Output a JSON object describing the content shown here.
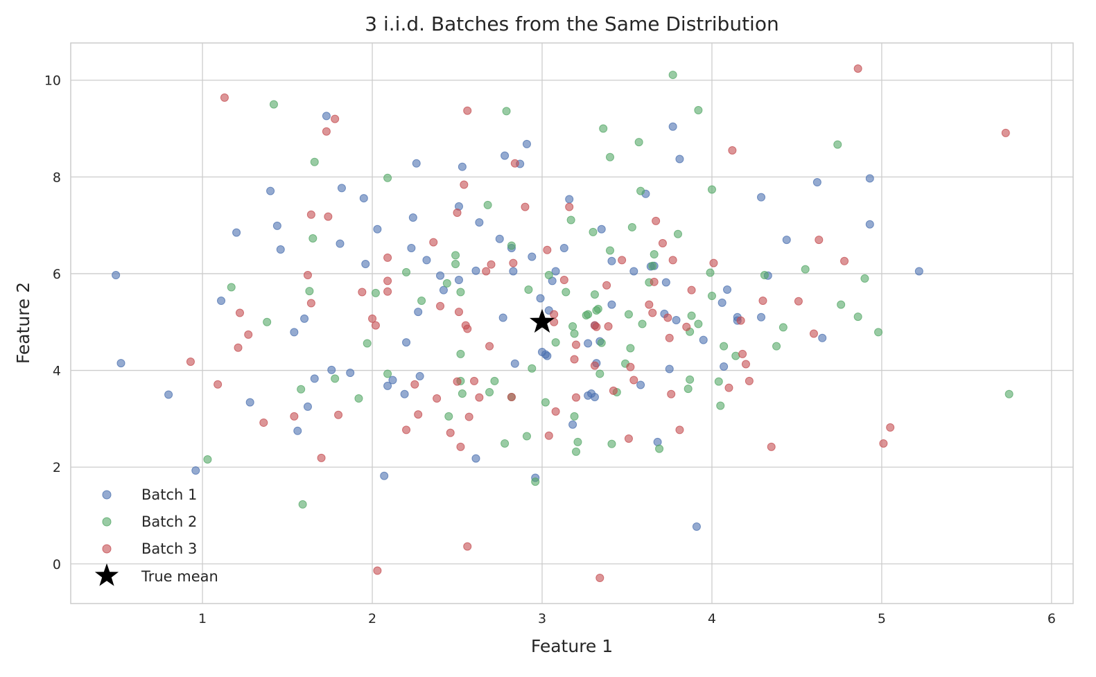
{
  "chart_data": {
    "type": "scatter",
    "title": "3 i.i.d. Batches from the Same Distribution",
    "xlabel": "Feature 1",
    "ylabel": "Feature 2",
    "xlim": [
      0.224,
      6.127
    ],
    "ylim": [
      -0.82,
      10.77
    ],
    "xticks": [
      1,
      2,
      3,
      4,
      5,
      6
    ],
    "yticks": [
      0,
      2,
      4,
      6,
      8,
      10
    ],
    "grid": true,
    "legend_position": "bottom-left",
    "series": [
      {
        "name": "Batch 1",
        "color": "#4C72B0",
        "alpha": 0.6,
        "points": [
          [
            0.49,
            5.97
          ],
          [
            0.52,
            4.15
          ],
          [
            0.8,
            3.5
          ],
          [
            0.96,
            1.93
          ],
          [
            1.11,
            5.44
          ],
          [
            1.2,
            6.85
          ],
          [
            1.28,
            3.34
          ],
          [
            1.4,
            7.71
          ],
          [
            1.44,
            6.99
          ],
          [
            1.46,
            6.5
          ],
          [
            1.54,
            4.79
          ],
          [
            1.56,
            2.75
          ],
          [
            1.6,
            5.07
          ],
          [
            1.62,
            3.25
          ],
          [
            1.66,
            3.83
          ],
          [
            1.73,
            9.26
          ],
          [
            1.76,
            4.01
          ],
          [
            1.81,
            6.62
          ],
          [
            1.82,
            7.77
          ],
          [
            1.87,
            3.95
          ],
          [
            1.95,
            7.56
          ],
          [
            1.96,
            6.2
          ],
          [
            2.03,
            6.92
          ],
          [
            2.07,
            1.82
          ],
          [
            2.09,
            3.68
          ],
          [
            2.12,
            3.8
          ],
          [
            2.19,
            3.51
          ],
          [
            2.2,
            4.58
          ],
          [
            2.24,
            7.16
          ],
          [
            2.23,
            6.53
          ],
          [
            2.26,
            8.28
          ],
          [
            2.27,
            5.21
          ],
          [
            2.28,
            3.88
          ],
          [
            2.32,
            6.28
          ],
          [
            2.4,
            5.96
          ],
          [
            2.42,
            5.66
          ],
          [
            2.51,
            5.87
          ],
          [
            2.51,
            7.39
          ],
          [
            2.53,
            8.21
          ],
          [
            2.61,
            6.06
          ],
          [
            2.61,
            2.18
          ],
          [
            2.63,
            7.06
          ],
          [
            2.75,
            6.72
          ],
          [
            2.77,
            5.09
          ],
          [
            2.78,
            8.44
          ],
          [
            2.82,
            6.53
          ],
          [
            2.83,
            6.05
          ],
          [
            2.84,
            4.14
          ],
          [
            2.87,
            8.27
          ],
          [
            2.91,
            8.68
          ],
          [
            2.94,
            6.35
          ],
          [
            2.96,
            1.78
          ],
          [
            2.99,
            5.49
          ],
          [
            3.0,
            4.38
          ],
          [
            3.02,
            4.33
          ],
          [
            3.03,
            4.3
          ],
          [
            3.04,
            5.24
          ],
          [
            3.06,
            5.85
          ],
          [
            3.08,
            6.05
          ],
          [
            3.13,
            6.53
          ],
          [
            3.16,
            7.54
          ],
          [
            3.18,
            2.88
          ],
          [
            3.27,
            3.48
          ],
          [
            3.29,
            3.52
          ],
          [
            3.27,
            4.56
          ],
          [
            3.31,
            3.45
          ],
          [
            3.31,
            4.93
          ],
          [
            3.32,
            4.15
          ],
          [
            3.34,
            4.6
          ],
          [
            3.35,
            6.92
          ],
          [
            3.41,
            6.26
          ],
          [
            3.41,
            5.36
          ],
          [
            3.54,
            6.05
          ],
          [
            3.58,
            3.7
          ],
          [
            3.61,
            7.65
          ],
          [
            3.64,
            6.15
          ],
          [
            3.66,
            6.16
          ],
          [
            3.68,
            2.52
          ],
          [
            3.72,
            5.17
          ],
          [
            3.73,
            5.82
          ],
          [
            3.75,
            4.03
          ],
          [
            3.77,
            9.04
          ],
          [
            3.79,
            5.04
          ],
          [
            3.81,
            8.37
          ],
          [
            3.91,
            0.77
          ],
          [
            3.95,
            4.63
          ],
          [
            4.06,
            5.4
          ],
          [
            4.07,
            4.08
          ],
          [
            4.09,
            5.67
          ],
          [
            4.15,
            5.1
          ],
          [
            4.15,
            5.03
          ],
          [
            4.29,
            7.58
          ],
          [
            4.29,
            5.1
          ],
          [
            4.33,
            5.96
          ],
          [
            4.44,
            6.7
          ],
          [
            4.62,
            7.89
          ],
          [
            4.65,
            4.67
          ],
          [
            4.93,
            7.97
          ],
          [
            4.93,
            7.02
          ],
          [
            5.22,
            6.05
          ]
        ]
      },
      {
        "name": "Batch 2",
        "color": "#55A868",
        "alpha": 0.6,
        "points": [
          [
            1.03,
            2.16
          ],
          [
            1.17,
            5.72
          ],
          [
            1.38,
            5.0
          ],
          [
            1.42,
            9.5
          ],
          [
            1.59,
            1.23
          ],
          [
            1.58,
            3.61
          ],
          [
            1.63,
            5.64
          ],
          [
            1.66,
            8.31
          ],
          [
            1.65,
            6.73
          ],
          [
            1.78,
            3.83
          ],
          [
            1.92,
            3.42
          ],
          [
            1.97,
            4.56
          ],
          [
            2.02,
            5.6
          ],
          [
            2.09,
            7.98
          ],
          [
            2.09,
            3.93
          ],
          [
            2.2,
            6.03
          ],
          [
            2.29,
            5.44
          ],
          [
            2.44,
            5.8
          ],
          [
            2.45,
            3.05
          ],
          [
            2.49,
            6.38
          ],
          [
            2.49,
            6.2
          ],
          [
            2.52,
            5.62
          ],
          [
            2.52,
            4.34
          ],
          [
            2.52,
            3.78
          ],
          [
            2.53,
            3.52
          ],
          [
            2.68,
            7.42
          ],
          [
            2.69,
            3.55
          ],
          [
            2.72,
            3.78
          ],
          [
            2.79,
            9.36
          ],
          [
            2.78,
            2.49
          ],
          [
            2.82,
            3.45
          ],
          [
            2.82,
            6.58
          ],
          [
            2.91,
            2.64
          ],
          [
            2.92,
            5.67
          ],
          [
            2.94,
            4.04
          ],
          [
            2.96,
            1.7
          ],
          [
            3.02,
            3.34
          ],
          [
            3.04,
            5.97
          ],
          [
            3.08,
            4.58
          ],
          [
            3.14,
            5.62
          ],
          [
            3.17,
            7.11
          ],
          [
            3.18,
            4.91
          ],
          [
            3.19,
            4.76
          ],
          [
            3.19,
            3.05
          ],
          [
            3.21,
            2.52
          ],
          [
            3.2,
            2.32
          ],
          [
            3.26,
            5.14
          ],
          [
            3.27,
            5.16
          ],
          [
            3.3,
            6.86
          ],
          [
            3.31,
            5.57
          ],
          [
            3.32,
            5.24
          ],
          [
            3.33,
            5.27
          ],
          [
            3.34,
            3.93
          ],
          [
            3.35,
            4.57
          ],
          [
            3.36,
            9.0
          ],
          [
            3.4,
            6.48
          ],
          [
            3.4,
            8.41
          ],
          [
            3.41,
            2.48
          ],
          [
            3.44,
            3.55
          ],
          [
            3.49,
            4.14
          ],
          [
            3.51,
            5.16
          ],
          [
            3.53,
            6.96
          ],
          [
            3.52,
            4.46
          ],
          [
            3.57,
            8.72
          ],
          [
            3.58,
            7.71
          ],
          [
            3.59,
            4.96
          ],
          [
            3.63,
            5.82
          ],
          [
            3.65,
            6.16
          ],
          [
            3.66,
            6.4
          ],
          [
            3.69,
            2.38
          ],
          [
            3.77,
            10.11
          ],
          [
            3.8,
            6.82
          ],
          [
            3.86,
            3.62
          ],
          [
            3.87,
            3.81
          ],
          [
            3.87,
            4.8
          ],
          [
            3.88,
            5.13
          ],
          [
            3.92,
            9.38
          ],
          [
            3.92,
            4.96
          ],
          [
            3.99,
            6.02
          ],
          [
            4.0,
            5.54
          ],
          [
            4.0,
            7.74
          ],
          [
            4.04,
            3.77
          ],
          [
            4.05,
            3.27
          ],
          [
            4.07,
            4.5
          ],
          [
            4.14,
            4.3
          ],
          [
            4.31,
            5.97
          ],
          [
            4.38,
            4.5
          ],
          [
            4.42,
            4.89
          ],
          [
            4.55,
            6.09
          ],
          [
            4.74,
            8.67
          ],
          [
            4.76,
            5.36
          ],
          [
            4.86,
            5.11
          ],
          [
            4.9,
            5.9
          ],
          [
            4.98,
            4.79
          ],
          [
            5.75,
            3.51
          ]
        ]
      },
      {
        "name": "Batch 3",
        "color": "#C44E52",
        "alpha": 0.6,
        "points": [
          [
            0.93,
            4.18
          ],
          [
            1.09,
            3.71
          ],
          [
            1.13,
            9.64
          ],
          [
            1.22,
            5.19
          ],
          [
            1.21,
            4.47
          ],
          [
            1.27,
            4.74
          ],
          [
            1.36,
            2.92
          ],
          [
            1.54,
            3.05
          ],
          [
            1.62,
            5.97
          ],
          [
            1.64,
            5.39
          ],
          [
            1.64,
            7.22
          ],
          [
            1.7,
            2.19
          ],
          [
            1.73,
            8.94
          ],
          [
            1.74,
            7.18
          ],
          [
            1.78,
            9.2
          ],
          [
            1.8,
            3.08
          ],
          [
            1.94,
            5.62
          ],
          [
            2.03,
            -0.14
          ],
          [
            2.02,
            4.93
          ],
          [
            2.0,
            5.07
          ],
          [
            2.09,
            5.85
          ],
          [
            2.09,
            5.63
          ],
          [
            2.09,
            6.33
          ],
          [
            2.2,
            2.77
          ],
          [
            2.25,
            3.71
          ],
          [
            2.27,
            3.09
          ],
          [
            2.36,
            6.65
          ],
          [
            2.4,
            5.33
          ],
          [
            2.38,
            3.42
          ],
          [
            2.46,
            2.71
          ],
          [
            2.5,
            7.26
          ],
          [
            2.5,
            3.77
          ],
          [
            2.51,
            5.21
          ],
          [
            2.52,
            2.42
          ],
          [
            2.54,
            7.84
          ],
          [
            2.55,
            4.93
          ],
          [
            2.56,
            4.86
          ],
          [
            2.56,
            9.37
          ],
          [
            2.56,
            0.36
          ],
          [
            2.57,
            3.04
          ],
          [
            2.6,
            3.78
          ],
          [
            2.63,
            3.44
          ],
          [
            2.67,
            6.05
          ],
          [
            2.7,
            6.19
          ],
          [
            2.69,
            4.5
          ],
          [
            2.82,
            3.45
          ],
          [
            2.83,
            6.22
          ],
          [
            2.84,
            8.28
          ],
          [
            2.9,
            7.38
          ],
          [
            3.03,
            6.49
          ],
          [
            3.04,
            2.65
          ],
          [
            3.07,
            5.16
          ],
          [
            3.07,
            5.0
          ],
          [
            3.08,
            3.15
          ],
          [
            3.13,
            5.87
          ],
          [
            3.16,
            7.38
          ],
          [
            3.19,
            4.23
          ],
          [
            3.2,
            4.53
          ],
          [
            3.2,
            3.44
          ],
          [
            3.31,
            4.93
          ],
          [
            3.31,
            4.1
          ],
          [
            3.32,
            4.9
          ],
          [
            3.38,
            5.76
          ],
          [
            3.39,
            4.91
          ],
          [
            3.42,
            3.58
          ],
          [
            3.47,
            6.28
          ],
          [
            3.51,
            2.59
          ],
          [
            3.52,
            4.07
          ],
          [
            3.54,
            3.8
          ],
          [
            3.63,
            5.36
          ],
          [
            3.65,
            5.19
          ],
          [
            3.67,
            7.09
          ],
          [
            3.66,
            5.83
          ],
          [
            3.71,
            6.63
          ],
          [
            3.74,
            5.09
          ],
          [
            3.77,
            6.28
          ],
          [
            3.76,
            3.51
          ],
          [
            3.75,
            4.67
          ],
          [
            3.81,
            2.77
          ],
          [
            3.85,
            4.9
          ],
          [
            3.88,
            5.66
          ],
          [
            4.01,
            6.22
          ],
          [
            4.1,
            3.64
          ],
          [
            4.12,
            8.55
          ],
          [
            4.17,
            5.03
          ],
          [
            4.18,
            4.34
          ],
          [
            4.2,
            4.13
          ],
          [
            4.22,
            3.78
          ],
          [
            4.3,
            5.44
          ],
          [
            4.35,
            2.42
          ],
          [
            4.51,
            5.43
          ],
          [
            4.6,
            4.76
          ],
          [
            4.63,
            6.7
          ],
          [
            4.78,
            6.26
          ],
          [
            4.86,
            10.24
          ],
          [
            5.01,
            2.49
          ],
          [
            5.05,
            2.82
          ],
          [
            5.73,
            8.91
          ],
          [
            3.34,
            -0.29
          ]
        ]
      },
      {
        "name": "True mean",
        "color": "#000000",
        "marker": "star",
        "points": [
          [
            3.0,
            5.0
          ]
        ]
      }
    ]
  }
}
